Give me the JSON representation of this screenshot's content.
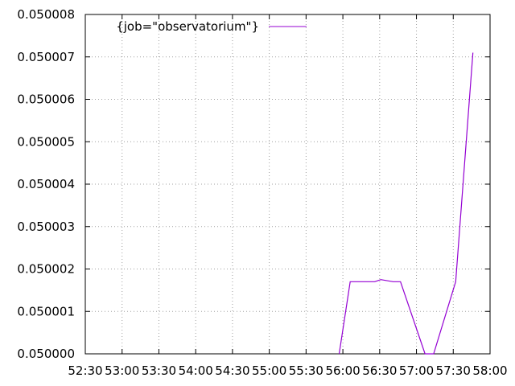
{
  "chart_data": {
    "type": "line",
    "title": "",
    "xlabel": "",
    "ylabel": "",
    "x_tick_labels": [
      "52:30",
      "53:00",
      "53:30",
      "54:00",
      "54:30",
      "55:00",
      "55:30",
      "56:00",
      "56:30",
      "57:00",
      "57:30",
      "58:00"
    ],
    "y_tick_labels": [
      "0.050000",
      "0.050001",
      "0.050002",
      "0.050003",
      "0.050004",
      "0.050005",
      "0.050006",
      "0.050007",
      "0.050008"
    ],
    "xlim": [
      "52:30",
      "58:00"
    ],
    "ylim": [
      0.05,
      0.050008
    ],
    "grid": true,
    "legend_position": "top-left",
    "series": [
      {
        "name": "{job=\"observatorium\"}",
        "color": "#9400d3",
        "x": [
          "55:57",
          "56:06",
          "56:26",
          "56:31",
          "56:41",
          "56:47",
          "57:07",
          "57:14",
          "57:32",
          "57:46"
        ],
        "y": [
          0.05,
          0.0500017,
          0.0500017,
          0.05000175,
          0.0500017,
          0.0500017,
          0.05,
          0.05,
          0.0500017,
          0.0500071
        ]
      }
    ]
  }
}
